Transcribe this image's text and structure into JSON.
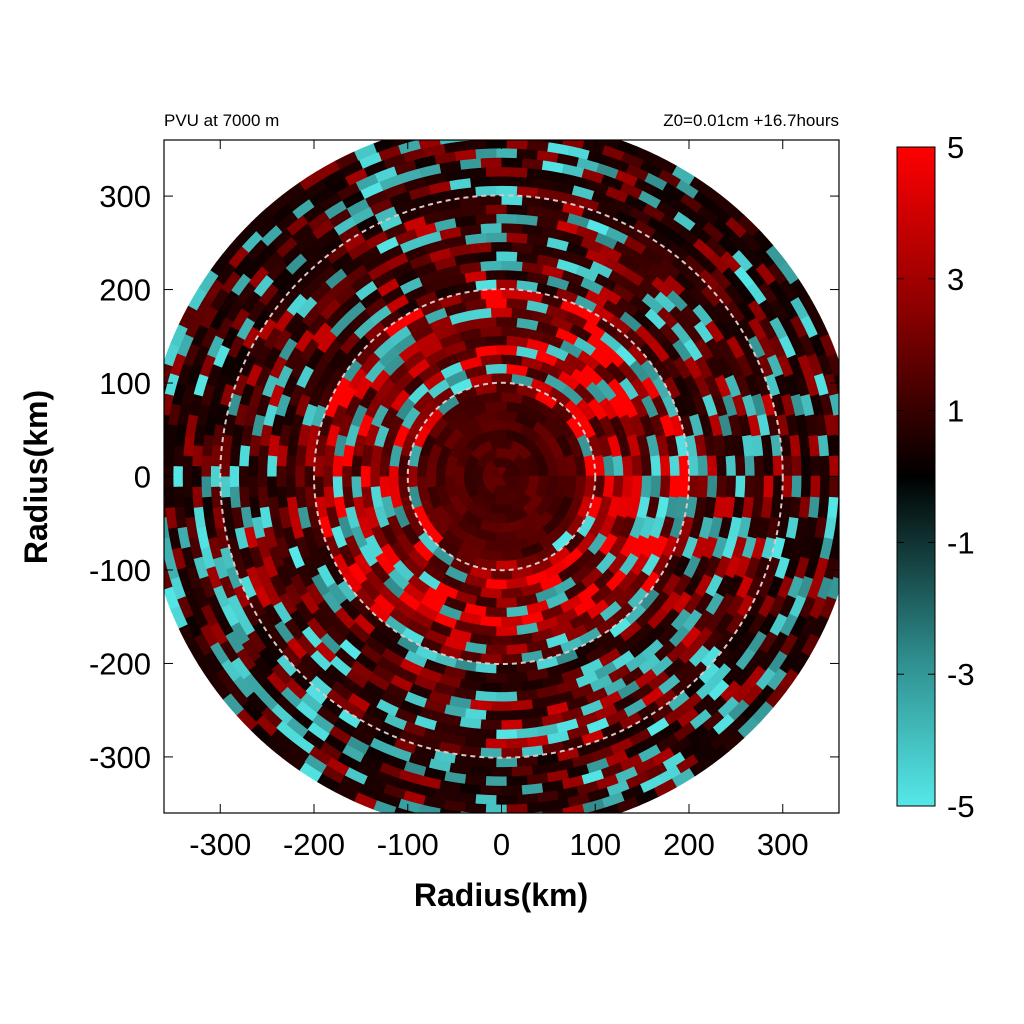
{
  "chart_data": {
    "type": "heatmap",
    "title_left": "PVU at  7000 m",
    "title_right": "Z0=0.01cm  +16.7hours",
    "xlabel": "Radius(km)",
    "ylabel": "Radius(km)",
    "xlim": [
      -360,
      360
    ],
    "ylim": [
      -360,
      360
    ],
    "x_ticks": [
      -300,
      -200,
      -100,
      0,
      100,
      200,
      300
    ],
    "y_ticks": [
      300,
      200,
      100,
      0,
      -100,
      -200,
      -300
    ],
    "x_tick_labels": [
      "-300",
      "-200",
      "-100",
      "0",
      "100",
      "200",
      "300"
    ],
    "y_tick_labels": [
      "300",
      "200",
      "100",
      "0",
      "-100",
      "-200",
      "-300"
    ],
    "reference_circles_km": [
      100,
      200,
      300
    ],
    "domain_radius_km": 380,
    "colorbar": {
      "range": [
        -5,
        5
      ],
      "ticks": [
        5,
        3,
        1,
        -1,
        -3,
        -5
      ],
      "tick_labels": [
        "5",
        "3",
        "1",
        "-1",
        "-3",
        "-5"
      ],
      "color_min": "#55e8e8",
      "color_zero": "#000000",
      "color_max": "#ff0000"
    },
    "bands": [
      {
        "r_inner": 0,
        "r_outer": 90,
        "mean_value": 1.5
      },
      {
        "r_inner": 90,
        "r_outer": 200,
        "mean_value": 3.5
      },
      {
        "r_inner": 200,
        "r_outer": 300,
        "mean_value": 1.5
      },
      {
        "r_inner": 300,
        "r_outer": 380,
        "mean_value": 0.8
      }
    ]
  }
}
